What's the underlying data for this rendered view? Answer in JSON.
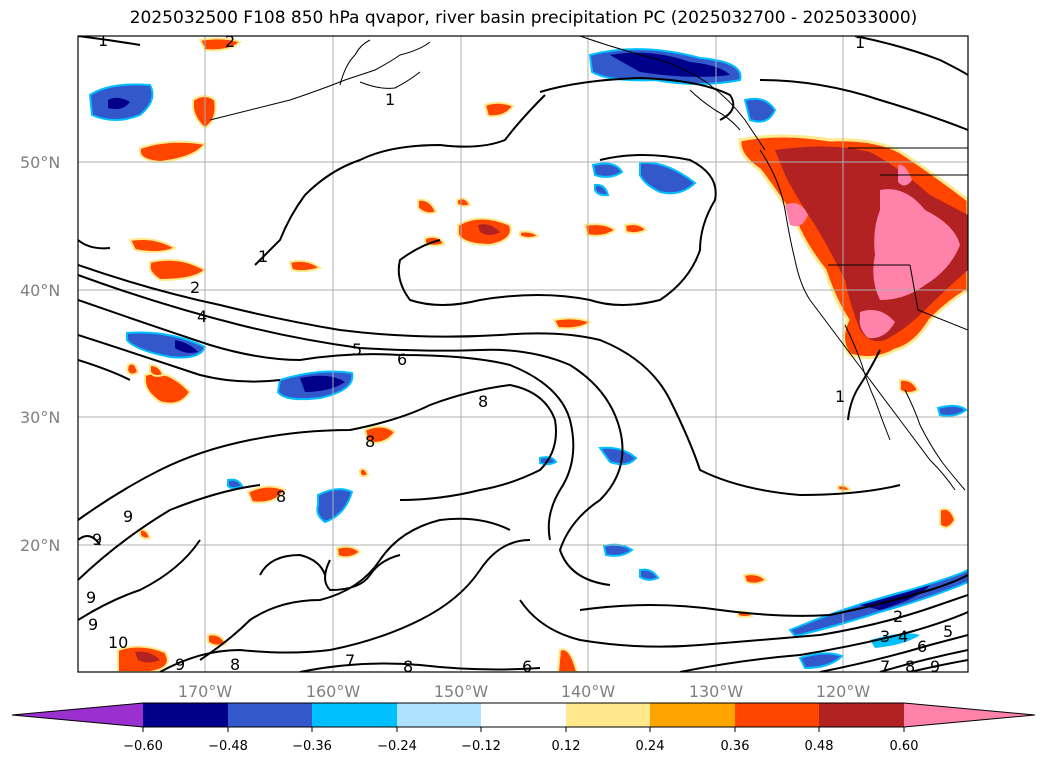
{
  "title": "2025032500 F108 850 hPa qvapor, river basin precipitation PC (2025032700 - 2025033000)",
  "map": {
    "lat_labels": [
      "50°N",
      "40°N",
      "30°N",
      "20°N"
    ],
    "lon_labels": [
      "170°W",
      "160°W",
      "150°W",
      "140°W",
      "130°W",
      "120°W"
    ],
    "label_color": "#808080",
    "grid_color": "#b0b0b0"
  },
  "contour_labels": [
    "1",
    "1",
    "2",
    "2",
    "4",
    "5",
    "6",
    "8",
    "8",
    "8",
    "9",
    "9",
    "9",
    "9",
    "10",
    "9",
    "8",
    "7",
    "8",
    "6",
    "1",
    "1",
    "2",
    "3",
    "4",
    "6",
    "5",
    "7",
    "8",
    "9",
    "1"
  ],
  "colorbar": {
    "colors": [
      "#9b30d0",
      "#00008b",
      "#3358cc",
      "#00bfff",
      "#b0e2ff",
      "#ffffff",
      "#ffe98c",
      "#ffa500",
      "#ff4500",
      "#b22222",
      "#ff82ab"
    ],
    "tick_labels": [
      "−0.60",
      "−0.48",
      "−0.36",
      "−0.24",
      "−0.12",
      "0.12",
      "0.24",
      "0.36",
      "0.48",
      "0.60"
    ]
  }
}
